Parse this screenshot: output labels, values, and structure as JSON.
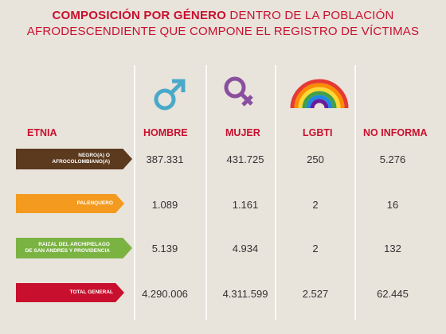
{
  "title": {
    "bold": "COMPOSICIÓN POR GÉNERO",
    "rest_line1": "DENTRO DE LA POBLACIÓN",
    "line2": "AFRODESCENDIENTE QUE COMPONE EL REGISTRO DE VÍCTIMAS"
  },
  "icons": {
    "hombre": "male-symbol-icon",
    "mujer": "female-symbol-icon",
    "lgbti": "rainbow-icon"
  },
  "colors": {
    "accent": "#c8102e",
    "hombre_icon": "#4aa9c9",
    "mujer_icon": "#8a4f9e",
    "background": "#e8e3db"
  },
  "headers": {
    "etnia": "ETNIA",
    "hombre": "HOMBRE",
    "mujer": "MUJER",
    "lgbti": "LGBTI",
    "no_informa": "NO INFORMA"
  },
  "rows": [
    {
      "label_line1": "NEGRO(A) O",
      "label_line2": "AFROCOLOMBIANO(A)",
      "color": "#5b3a1e",
      "hombre": "387.331",
      "mujer": "431.725",
      "lgbti": "250",
      "no_informa": "5.276"
    },
    {
      "label_line1": "PALENQUERO",
      "label_line2": "",
      "color": "#f39a1f",
      "hombre": "1.089",
      "mujer": "1.161",
      "lgbti": "2",
      "no_informa": "16"
    },
    {
      "label_line1": "RAIZAL DEL ARCHIPIELAGO",
      "label_line2": "DE SAN ANDRES Y PROVIDENCIA",
      "color": "#7bb342",
      "hombre": "5.139",
      "mujer": "4.934",
      "lgbti": "2",
      "no_informa": "132"
    },
    {
      "label_line1": "TOTAL GENERAL",
      "label_line2": "",
      "color": "#c8102e",
      "hombre": "4.290.006",
      "mujer": "4.311.599",
      "lgbti": "2.527",
      "no_informa": "62.445"
    }
  ]
}
